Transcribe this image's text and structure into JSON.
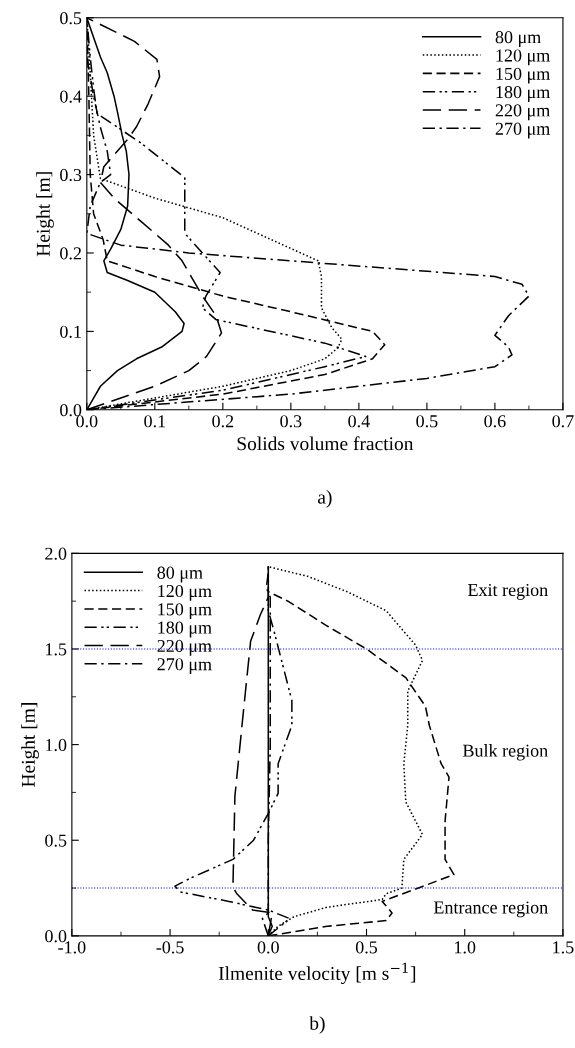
{
  "chart_data": [
    {
      "type": "line",
      "xlabel": "Solids volume fraction",
      "ylabel": "Height [m]",
      "xlim": [
        0,
        0.7
      ],
      "ylim": [
        0,
        0.5
      ],
      "xticks": [
        {
          "value": 0,
          "label": "0.0"
        },
        {
          "value": 0.1,
          "label": "0.1"
        },
        {
          "value": 0.2,
          "label": "0.2"
        },
        {
          "value": 0.3,
          "label": "0.3"
        },
        {
          "value": 0.4,
          "label": "0.4"
        },
        {
          "value": 0.5,
          "label": "0.5"
        },
        {
          "value": 0.6,
          "label": "0.6"
        },
        {
          "value": 0.7,
          "label": "0.7"
        }
      ],
      "yticks": [
        {
          "value": 0,
          "label": "0.0"
        },
        {
          "value": 0.1,
          "label": "0.1"
        },
        {
          "value": 0.2,
          "label": "0.2"
        },
        {
          "value": 0.3,
          "label": "0.3"
        },
        {
          "value": 0.4,
          "label": "0.4"
        },
        {
          "value": 0.5,
          "label": "0.5"
        }
      ],
      "legend": "top right",
      "grid": false,
      "series": [
        {
          "name": "80 μm",
          "color": "#000000",
          "line_style": "solid",
          "x": [
            0,
            0.02,
            0.045,
            0.073,
            0.11,
            0.14,
            0.143,
            0.13,
            0.1,
            0.06,
            0.03,
            0.025,
            0.035,
            0.05,
            0.06,
            0.062,
            0.058,
            0.052,
            0.045,
            0.04,
            0.03,
            0.02,
            0.01,
            0
          ],
          "values": [
            0,
            0.03,
            0.05,
            0.065,
            0.08,
            0.1,
            0.11,
            0.125,
            0.15,
            0.165,
            0.175,
            0.19,
            0.205,
            0.23,
            0.26,
            0.3,
            0.33,
            0.35,
            0.38,
            0.4,
            0.43,
            0.45,
            0.475,
            0.5
          ]
        },
        {
          "name": "120 μm",
          "color": "#000000",
          "line_style": "dotted",
          "x": [
            0,
            0.1,
            0.2,
            0.3,
            0.35,
            0.369,
            0.375,
            0.36,
            0.345,
            0.345,
            0.34,
            0.2,
            0.1,
            0.02,
            0.01,
            0.005,
            0
          ],
          "values": [
            0,
            0.015,
            0.03,
            0.05,
            0.065,
            0.079,
            0.09,
            0.105,
            0.13,
            0.17,
            0.19,
            0.245,
            0.27,
            0.295,
            0.35,
            0.43,
            0.5
          ]
        },
        {
          "name": "150 μm",
          "color": "#000000",
          "line_style": "dashed",
          "x": [
            0,
            0.2,
            0.35,
            0.42,
            0.438,
            0.42,
            0.3,
            0.2,
            0.1,
            0.03,
            0.024,
            0.01,
            0.005,
            0.003,
            0
          ],
          "values": [
            0,
            0.02,
            0.045,
            0.065,
            0.083,
            0.1,
            0.125,
            0.145,
            0.17,
            0.19,
            0.217,
            0.25,
            0.3,
            0.4,
            0.5
          ]
        },
        {
          "name": "180 μm",
          "color": "#000000",
          "line_style": "dashdotdot",
          "x": [
            0,
            0.2,
            0.35,
            0.41,
            0.35,
            0.19,
            0.17,
            0.175,
            0.196,
            0.17,
            0.144,
            0.144,
            0.144,
            0.08,
            0.015,
            0.01,
            0.005,
            0
          ],
          "values": [
            0,
            0.025,
            0.055,
            0.068,
            0.085,
            0.115,
            0.13,
            0.145,
            0.175,
            0.2,
            0.225,
            0.26,
            0.296,
            0.34,
            0.378,
            0.41,
            0.45,
            0.5
          ]
        },
        {
          "name": "220 μm",
          "color": "#000000",
          "line_style": "longdash",
          "x": [
            0,
            0.05,
            0.1,
            0.15,
            0.176,
            0.198,
            0.19,
            0.17,
            0.14,
            0.12,
            0.08,
            0.04,
            0.02,
            0.025,
            0.04,
            0.06,
            0.073,
            0.09,
            0.107,
            0.103,
            0.07,
            0
          ],
          "values": [
            0,
            0.015,
            0.03,
            0.05,
            0.068,
            0.098,
            0.12,
            0.145,
            0.19,
            0.21,
            0.24,
            0.27,
            0.29,
            0.31,
            0.325,
            0.345,
            0.361,
            0.39,
            0.425,
            0.447,
            0.47,
            0.5
          ]
        },
        {
          "name": "270 μm",
          "color": "#000000",
          "line_style": "dashdot",
          "x": [
            0,
            0.3,
            0.5,
            0.6,
            0.625,
            0.62,
            0.6,
            0.62,
            0.65,
            0.64,
            0.6,
            0.45,
            0.3,
            0.15,
            0.05,
            0,
            0.005,
            0.02,
            0.035,
            0.03,
            0.02,
            0.01,
            0
          ],
          "values": [
            0,
            0.02,
            0.04,
            0.055,
            0.07,
            0.08,
            0.095,
            0.12,
            0.145,
            0.16,
            0.17,
            0.18,
            0.19,
            0.2,
            0.21,
            0.225,
            0.26,
            0.29,
            0.3,
            0.33,
            0.36,
            0.4,
            0.45
          ]
        }
      ],
      "annotations": [
        "a)"
      ]
    },
    {
      "type": "line",
      "xlabel": "Ilmenite velocity [m s$^{−1}$]",
      "ylabel": "Height [m]",
      "xlim": [
        -1.0,
        1.5
      ],
      "ylim": [
        0,
        2.0
      ],
      "xticks": [
        {
          "value": -1.0,
          "label": "-1.0"
        },
        {
          "value": -0.5,
          "label": "-0.5"
        },
        {
          "value": 0,
          "label": "0.0"
        },
        {
          "value": 0.5,
          "label": "0.5"
        },
        {
          "value": 1.0,
          "label": "1.0"
        },
        {
          "value": 1.5,
          "label": "1.5"
        }
      ],
      "yticks": [
        {
          "value": 0,
          "label": "0.0"
        },
        {
          "value": 0.5,
          "label": "0.5"
        },
        {
          "value": 1.0,
          "label": "1.0"
        },
        {
          "value": 1.5,
          "label": "1.5"
        },
        {
          "value": 2.0,
          "label": "2.0"
        }
      ],
      "legend": "top left",
      "grid": false,
      "ref_lines": [
        {
          "axis": "y",
          "value": 1.5,
          "color": "#0000ff",
          "line_style": "dotted"
        },
        {
          "axis": "y",
          "value": 0.25,
          "color": "#0000ff",
          "line_style": "dotted"
        }
      ],
      "series": [
        {
          "name": "80 μm",
          "color": "#000000",
          "line_style": "solid",
          "x": [
            0,
            0.02,
            0,
            0,
            0,
            0,
            0
          ],
          "values": [
            0,
            0.05,
            0.1,
            0.25,
            1.0,
            1.5,
            1.93
          ]
        },
        {
          "name": "120 μm",
          "color": "#000000",
          "line_style": "dotted",
          "x": [
            0,
            0.05,
            0.13,
            0.3,
            0.58,
            0.6,
            0.68,
            0.69,
            0.785,
            0.7,
            0.69,
            0.71,
            0.71,
            0.785,
            0.75,
            0.6,
            0.4,
            0.2,
            0
          ],
          "values": [
            0,
            0.05,
            0.1,
            0.15,
            0.19,
            0.22,
            0.25,
            0.4,
            0.53,
            0.7,
            0.9,
            1.1,
            1.28,
            1.44,
            1.52,
            1.7,
            1.8,
            1.88,
            1.93
          ]
        },
        {
          "name": "150 μm",
          "color": "#000000",
          "line_style": "dashed",
          "x": [
            0,
            0.3,
            0.6,
            0.63,
            0.58,
            0.945,
            0.9,
            0.9,
            0.92,
            0.88,
            0.82,
            0.8,
            0.7,
            0.5,
            0.3,
            0.1,
            0
          ],
          "values": [
            0,
            0.05,
            0.08,
            0.12,
            0.18,
            0.32,
            0.4,
            0.6,
            0.83,
            0.9,
            1.1,
            1.2,
            1.35,
            1.5,
            1.62,
            1.75,
            1.8
          ]
        },
        {
          "name": "180 μm",
          "color": "#000000",
          "line_style": "dashdotdot",
          "x": [
            0,
            0.11,
            0,
            -0.2,
            -0.45,
            -0.475,
            -0.4,
            -0.18,
            -0.075,
            0,
            0.05,
            0.05,
            0.12,
            0.12,
            0.03,
            0,
            0
          ],
          "values": [
            0,
            0.09,
            0.135,
            0.18,
            0.23,
            0.26,
            0.3,
            0.4,
            0.5,
            0.64,
            0.745,
            0.9,
            1.1,
            1.23,
            1.59,
            1.7,
            1.93
          ]
        },
        {
          "name": "220 μm",
          "color": "#000000",
          "line_style": "longdash",
          "x": [
            0,
            0.02,
            -0.08,
            -0.16,
            -0.18,
            -0.17,
            -0.13,
            -0.09,
            -0.04,
            0
          ],
          "values": [
            0,
            0.12,
            0.135,
            0.22,
            0.255,
            0.73,
            1.14,
            1.54,
            1.68,
            1.77
          ]
        },
        {
          "name": "270 μm",
          "color": "#000000",
          "line_style": "dashdot",
          "x": [
            0,
            -0.03,
            0,
            0,
            0.01,
            0.01,
            -0.01,
            0
          ],
          "values": [
            0,
            0.09,
            0.12,
            0.5,
            1.0,
            1.77,
            1.82,
            1.9
          ]
        }
      ],
      "annotations": [
        "Exit region",
        "Bulk region",
        "Entrance region",
        "b)"
      ]
    }
  ]
}
